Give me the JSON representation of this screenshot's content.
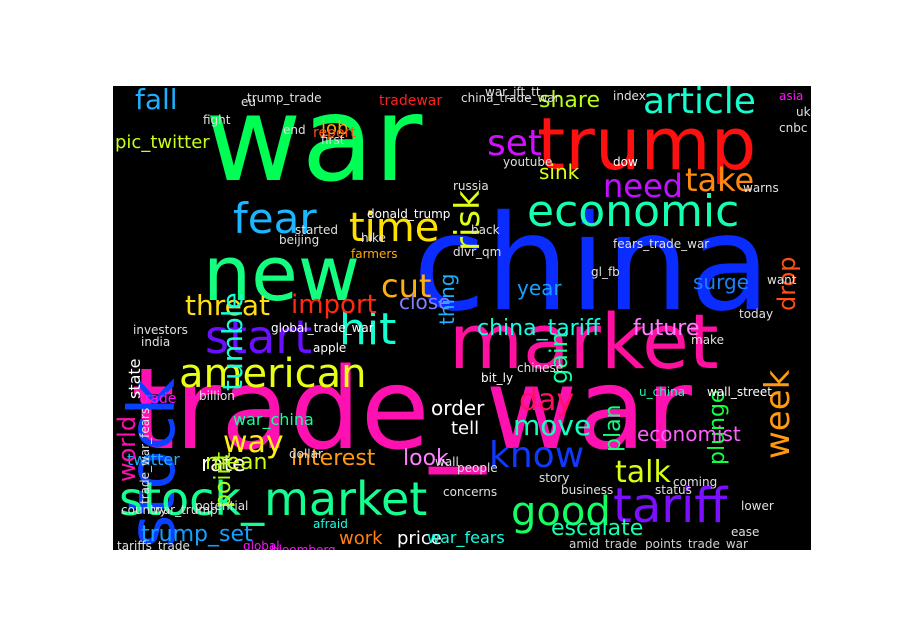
{
  "words": [
    {
      "text": "war",
      "color": "#00ff55"
    },
    {
      "text": "trump",
      "color": "#ff1010"
    },
    {
      "text": "china",
      "color": "#0a2cff"
    },
    {
      "text": "trade_war",
      "color": "#ff10b0"
    },
    {
      "text": "stock",
      "color": "#0a40ff"
    },
    {
      "text": "new",
      "color": "#14ff80"
    },
    {
      "text": "market",
      "color": "#ff10a0"
    },
    {
      "text": "stock_market",
      "color": "#14ff90"
    },
    {
      "text": "economic",
      "color": "#14ffb0"
    },
    {
      "text": "time",
      "color": "#ffe000"
    },
    {
      "text": "fear",
      "color": "#1cb6ff"
    },
    {
      "text": "american",
      "color": "#e6ff14"
    },
    {
      "text": "tariff",
      "color": "#7a10ff"
    },
    {
      "text": "good",
      "color": "#14ff60"
    },
    {
      "text": "start",
      "color": "#6a10ff"
    },
    {
      "text": "hit",
      "color": "#14ffd0"
    },
    {
      "text": "article",
      "color": "#14ffd0"
    },
    {
      "text": "take",
      "color": "#ff8a10"
    },
    {
      "text": "need",
      "color": "#c010ff"
    },
    {
      "text": "week",
      "color": "#ff9a10"
    },
    {
      "text": "risk",
      "color": "#e0ff14"
    },
    {
      "text": "set",
      "color": "#d010ff"
    },
    {
      "text": "know",
      "color": "#1038ff"
    },
    {
      "text": "day",
      "color": "#ff1060"
    },
    {
      "text": "talk",
      "color": "#d8ff14"
    },
    {
      "text": "move",
      "color": "#14ffc0"
    },
    {
      "text": "threat",
      "color": "#ffdd10"
    },
    {
      "text": "import",
      "color": "#ff2a10"
    },
    {
      "text": "cut",
      "color": "#ffb010"
    },
    {
      "text": "way",
      "color": "#fff014"
    },
    {
      "text": "fall",
      "color": "#1cb0ff"
    },
    {
      "text": "tumble",
      "color": "#14ffd8"
    },
    {
      "text": "share",
      "color": "#b8ff14"
    },
    {
      "text": "job",
      "color": "#ffaa10"
    },
    {
      "text": "interest",
      "color": "#ff9a10"
    },
    {
      "text": "rate",
      "color": "#ffffff"
    },
    {
      "text": "mean",
      "color": "#c8ff14"
    },
    {
      "text": "point",
      "color": "#a8ff14"
    },
    {
      "text": "look",
      "color": "#ff80ff"
    },
    {
      "text": "plan",
      "color": "#14ff80"
    },
    {
      "text": "gain",
      "color": "#14ffa0"
    },
    {
      "text": "drop",
      "color": "#ff5010"
    },
    {
      "text": "plunge",
      "color": "#14ff40"
    },
    {
      "text": "escalate",
      "color": "#14ffb0"
    },
    {
      "text": "trump_set",
      "color": "#14a0ff"
    },
    {
      "text": "china_tariff",
      "color": "#14ffe0"
    },
    {
      "text": "future",
      "color": "#ff80ff"
    },
    {
      "text": "close",
      "color": "#8080ff"
    },
    {
      "text": "sink",
      "color": "#e0ff14"
    },
    {
      "text": "surge",
      "color": "#1c80ff"
    },
    {
      "text": "thing",
      "color": "#1cb0ff"
    },
    {
      "text": "order",
      "color": "#ffffff"
    },
    {
      "text": "tell",
      "color": "#ffffff"
    },
    {
      "text": "economist",
      "color": "#ff60ff"
    },
    {
      "text": "pic_twitter",
      "color": "#c8ff14"
    },
    {
      "text": "twitter",
      "color": "#1cb0ff"
    },
    {
      "text": "work",
      "color": "#ff8010"
    },
    {
      "text": "price",
      "color": "#ffffff"
    },
    {
      "text": "war_fears",
      "color": "#14ffe0"
    },
    {
      "text": "war_china",
      "color": "#14ffa0"
    },
    {
      "text": "state",
      "color": "#ffffff"
    },
    {
      "text": "year",
      "color": "#14a0ff"
    },
    {
      "text": "global_trade_war",
      "color": "#ffffff"
    },
    {
      "text": "dow",
      "color": "#ffffff"
    },
    {
      "text": "fears_trade_war",
      "color": "#e0e0e0"
    },
    {
      "text": "donald_trump",
      "color": "#ffffff"
    },
    {
      "text": "wall_street",
      "color": "#ffffff"
    },
    {
      "text": "amid_trade",
      "color": "#d0d0d0"
    },
    {
      "text": "points_trade_war",
      "color": "#d0d0d0"
    },
    {
      "text": "apple",
      "color": "#ffffff"
    },
    {
      "text": "report",
      "color": "#ff5010"
    },
    {
      "text": "tradewar",
      "color": "#ff2020"
    },
    {
      "text": "trump_trade",
      "color": "#e0e0e0"
    },
    {
      "text": "china_trade_war",
      "color": "#e0e0e0"
    },
    {
      "text": "fight",
      "color": "#e0e0e0"
    },
    {
      "text": "beijing",
      "color": "#e0e0e0"
    },
    {
      "text": "investors",
      "color": "#e0e0e0"
    },
    {
      "text": "india",
      "color": "#e0e0e0"
    },
    {
      "text": "want",
      "color": "#e0e0e0"
    },
    {
      "text": "today",
      "color": "#e0e0e0"
    },
    {
      "text": "warns",
      "color": "#e0e0e0"
    },
    {
      "text": "hike",
      "color": "#e0e0e0"
    },
    {
      "text": "started",
      "color": "#e0e0e0"
    },
    {
      "text": "farmers",
      "color": "#ffaa10"
    },
    {
      "text": "trade",
      "color": "#ff10ff"
    },
    {
      "text": "global",
      "color": "#ff10ff"
    },
    {
      "text": "bloomberg",
      "color": "#ff10ff"
    },
    {
      "text": "afraid",
      "color": "#14ffe0"
    },
    {
      "text": "cnbc",
      "color": "#e0e0e0"
    },
    {
      "text": "youtube",
      "color": "#e0e0e0"
    },
    {
      "text": "russia",
      "color": "#e0e0e0"
    },
    {
      "text": "gl_fb",
      "color": "#e0e0e0"
    },
    {
      "text": "bit_ly",
      "color": "#ffffff"
    },
    {
      "text": "dlvr_qm",
      "color": "#e0e0e0"
    },
    {
      "text": "chinese",
      "color": "#e0e0e0"
    },
    {
      "text": "people",
      "color": "#e0e0e0"
    },
    {
      "text": "business",
      "color": "#e0e0e0"
    },
    {
      "text": "world",
      "color": "#ff10b0"
    },
    {
      "text": "u_china",
      "color": "#14ffb0"
    },
    {
      "text": "concerns",
      "color": "#e0e0e0"
    },
    {
      "text": "status",
      "color": "#e0e0e0"
    },
    {
      "text": "country",
      "color": "#e0e0e0"
    },
    {
      "text": "uk",
      "color": "#e0e0e0"
    },
    {
      "text": "asia",
      "color": "#ff10ff"
    },
    {
      "text": "index",
      "color": "#e0e0e0"
    },
    {
      "text": "dollar",
      "color": "#e0e0e0"
    },
    {
      "text": "war_trump",
      "color": "#e0e0e0"
    },
    {
      "text": "tariffs_trade",
      "color": "#e0e0e0"
    },
    {
      "text": "trade_war_fears",
      "color": "#e0e0e0"
    },
    {
      "text": "potential",
      "color": "#e0e0e0"
    },
    {
      "text": "billion",
      "color": "#e0e0e0"
    },
    {
      "text": "eu",
      "color": "#e0e0e0"
    },
    {
      "text": "end",
      "color": "#e0e0e0"
    },
    {
      "text": "war_ift_tt",
      "color": "#e0e0e0"
    },
    {
      "text": "make",
      "color": "#e0e0e0"
    },
    {
      "text": "first",
      "color": "#e0e0e0"
    },
    {
      "text": "back",
      "color": "#e0e0e0"
    },
    {
      "text": "lower",
      "color": "#e0e0e0"
    },
    {
      "text": "wall",
      "color": "#e0e0e0"
    },
    {
      "text": "story",
      "color": "#e0e0e0"
    },
    {
      "text": "coming",
      "color": "#e0e0e0"
    },
    {
      "text": "ease",
      "color": "#e0e0e0"
    }
  ]
}
